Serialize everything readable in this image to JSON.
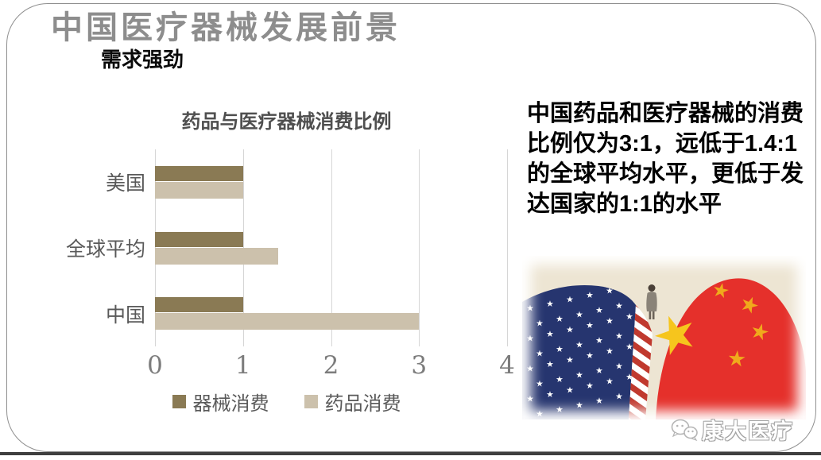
{
  "slide": {
    "title": "中国医疗器械发展前景",
    "subtitle": "需求强劲"
  },
  "chart_data": {
    "type": "bar",
    "orientation": "horizontal",
    "title": "药品与医疗器械消费比例",
    "categories": [
      "美国",
      "全球平均",
      "中国"
    ],
    "series": [
      {
        "name": "器械消费",
        "values": [
          1,
          1,
          1
        ],
        "color": "#8a7a54"
      },
      {
        "name": "药品消费",
        "values": [
          1,
          1.4,
          3
        ],
        "color": "#ccc1ac"
      }
    ],
    "xlabel": "",
    "ylabel": "",
    "xlim": [
      0,
      4
    ],
    "xticks": [
      0,
      1,
      2,
      3,
      4
    ],
    "grid": "vertical",
    "legend_position": "bottom"
  },
  "commentary": {
    "text": "中国药品和医疗器械的消费比例仅为3:1，远低于1.4:1的全球平均水平，更低于发达国家的1:1的水平"
  },
  "footer": {
    "brand": "康大医疗"
  },
  "illustration": {
    "background": "#ede5d3",
    "usa_flag_blue": "#26356f",
    "usa_flag_red": "#c0392e",
    "china_flag_red": "#e5302b",
    "china_flag_star_big": "#f6c51d",
    "china_flag_star_small": "#f0a91c"
  }
}
